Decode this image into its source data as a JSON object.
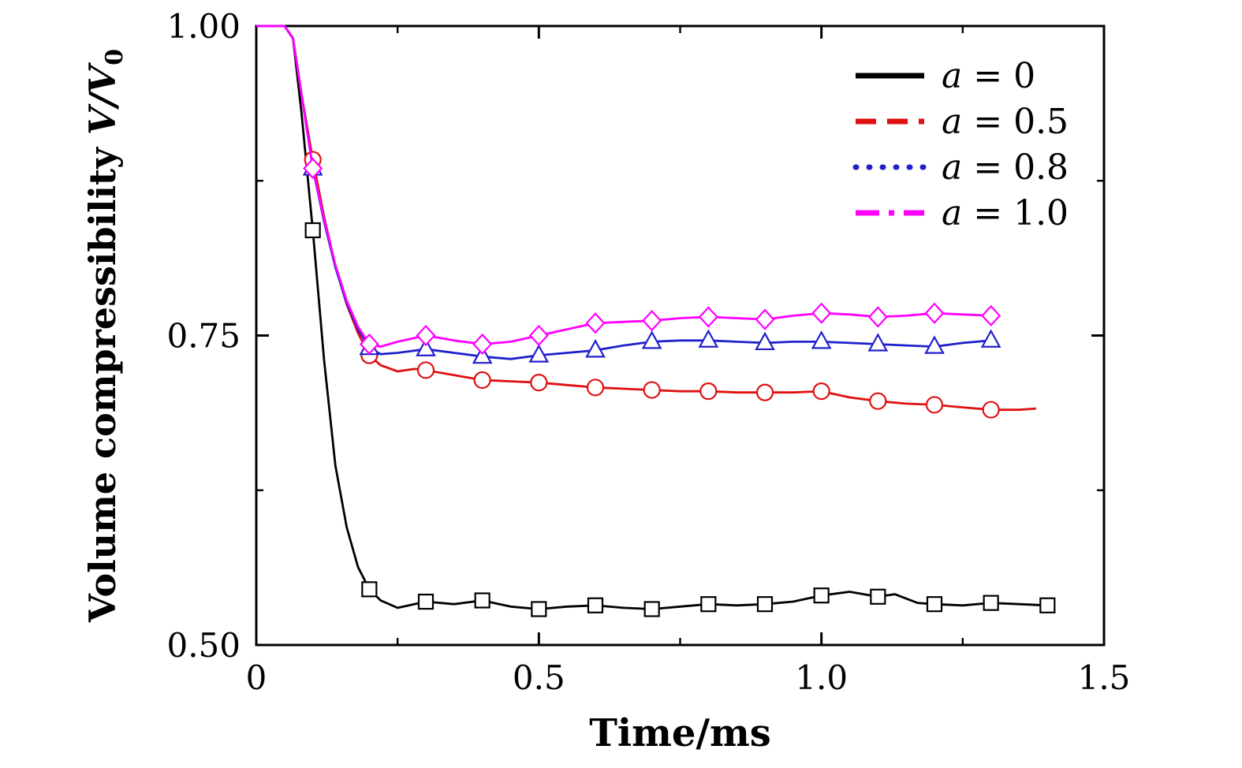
{
  "figure": {
    "background": "#ffffff",
    "frame_color": "#000000"
  },
  "chart_data": {
    "type": "line",
    "title": "",
    "xlabel": "Time/ms",
    "ylabel": {
      "text": "Volume compressibility",
      "math": "V/V",
      "sub": "0"
    },
    "xlim": [
      0,
      1.5
    ],
    "ylim": [
      0.5,
      1.0
    ],
    "grid": false,
    "legend_position": "top-right",
    "xticks": [
      {
        "value": 0,
        "label": "0"
      },
      {
        "value": 0.5,
        "label": "0.5"
      },
      {
        "value": 1.0,
        "label": "1.0"
      },
      {
        "value": 1.5,
        "label": "1.5"
      }
    ],
    "xminorticks": [
      0.25,
      0.75,
      1.25
    ],
    "yticks": [
      {
        "value": 0.5,
        "label": "0.50"
      },
      {
        "value": 0.75,
        "label": "0.75"
      },
      {
        "value": 1.0,
        "label": "1.00"
      }
    ],
    "yminorticks": [
      0.625,
      0.875
    ],
    "series": [
      {
        "name": "a = 0",
        "color": "#000000",
        "legend_dash": "solid",
        "marker": "square",
        "x": [
          0,
          0.05,
          0.065,
          0.08,
          0.1,
          0.12,
          0.14,
          0.16,
          0.18,
          0.2,
          0.22,
          0.25,
          0.3,
          0.35,
          0.4,
          0.45,
          0.5,
          0.55,
          0.6,
          0.65,
          0.7,
          0.75,
          0.8,
          0.85,
          0.9,
          0.95,
          1.0,
          1.05,
          1.1,
          1.13,
          1.17,
          1.2,
          1.25,
          1.3,
          1.35,
          1.4
        ],
        "v": [
          1.0,
          1.0,
          0.99,
          0.93,
          0.835,
          0.73,
          0.645,
          0.595,
          0.563,
          0.545,
          0.536,
          0.53,
          0.535,
          0.533,
          0.536,
          0.531,
          0.529,
          0.531,
          0.532,
          0.53,
          0.529,
          0.531,
          0.533,
          0.532,
          0.533,
          0.535,
          0.54,
          0.543,
          0.539,
          0.541,
          0.534,
          0.533,
          0.532,
          0.534,
          0.533,
          0.532
        ],
        "marker_x": [
          0.1,
          0.2,
          0.3,
          0.4,
          0.5,
          0.6,
          0.7,
          0.8,
          0.9,
          1.0,
          1.1,
          1.2,
          1.3,
          1.4
        ],
        "marker_v": [
          0.835,
          0.545,
          0.535,
          0.536,
          0.529,
          0.532,
          0.529,
          0.533,
          0.533,
          0.54,
          0.539,
          0.533,
          0.534,
          0.532
        ]
      },
      {
        "name": "a = 0.5",
        "color": "#e01010",
        "legend_dash": "dashed",
        "marker": "circle",
        "x": [
          0,
          0.05,
          0.065,
          0.08,
          0.1,
          0.12,
          0.14,
          0.16,
          0.18,
          0.2,
          0.22,
          0.25,
          0.28,
          0.3,
          0.35,
          0.4,
          0.45,
          0.5,
          0.55,
          0.6,
          0.65,
          0.7,
          0.75,
          0.8,
          0.85,
          0.9,
          0.95,
          1.0,
          1.05,
          1.1,
          1.15,
          1.2,
          1.25,
          1.3,
          1.35,
          1.38
        ],
        "v": [
          1.0,
          1.0,
          0.99,
          0.945,
          0.892,
          0.846,
          0.806,
          0.775,
          0.752,
          0.734,
          0.726,
          0.721,
          0.723,
          0.722,
          0.718,
          0.714,
          0.713,
          0.712,
          0.71,
          0.708,
          0.707,
          0.706,
          0.705,
          0.705,
          0.704,
          0.704,
          0.704,
          0.705,
          0.7,
          0.697,
          0.695,
          0.694,
          0.692,
          0.69,
          0.69,
          0.691
        ],
        "marker_x": [
          0.1,
          0.2,
          0.3,
          0.4,
          0.5,
          0.6,
          0.7,
          0.8,
          0.9,
          1.0,
          1.1,
          1.2,
          1.3
        ],
        "marker_v": [
          0.892,
          0.734,
          0.722,
          0.714,
          0.712,
          0.708,
          0.706,
          0.705,
          0.704,
          0.705,
          0.697,
          0.694,
          0.69
        ]
      },
      {
        "name": "a = 0.8",
        "color": "#2020cc",
        "legend_dash": "dotted",
        "marker": "triangle",
        "x": [
          0,
          0.05,
          0.065,
          0.08,
          0.1,
          0.12,
          0.14,
          0.16,
          0.18,
          0.2,
          0.22,
          0.25,
          0.3,
          0.35,
          0.4,
          0.45,
          0.5,
          0.55,
          0.6,
          0.65,
          0.7,
          0.75,
          0.8,
          0.85,
          0.9,
          0.95,
          1.0,
          1.05,
          1.1,
          1.15,
          1.2,
          1.25,
          1.3
        ],
        "v": [
          1.0,
          1.0,
          0.99,
          0.945,
          0.885,
          0.842,
          0.805,
          0.776,
          0.755,
          0.74,
          0.735,
          0.736,
          0.739,
          0.736,
          0.733,
          0.731,
          0.734,
          0.736,
          0.738,
          0.742,
          0.745,
          0.746,
          0.746,
          0.745,
          0.744,
          0.745,
          0.745,
          0.744,
          0.743,
          0.742,
          0.741,
          0.744,
          0.746
        ],
        "marker_x": [
          0.1,
          0.2,
          0.3,
          0.4,
          0.5,
          0.6,
          0.7,
          0.8,
          0.9,
          1.0,
          1.1,
          1.2,
          1.3
        ],
        "marker_v": [
          0.885,
          0.74,
          0.739,
          0.733,
          0.734,
          0.738,
          0.745,
          0.746,
          0.744,
          0.745,
          0.743,
          0.741,
          0.746
        ]
      },
      {
        "name": "a = 1.0",
        "color": "#ff00ff",
        "legend_dash": "dashdot",
        "marker": "diamond",
        "x": [
          0,
          0.05,
          0.065,
          0.08,
          0.1,
          0.12,
          0.14,
          0.16,
          0.18,
          0.2,
          0.22,
          0.25,
          0.3,
          0.35,
          0.4,
          0.45,
          0.5,
          0.55,
          0.6,
          0.65,
          0.7,
          0.75,
          0.8,
          0.85,
          0.9,
          0.95,
          1.0,
          1.05,
          1.1,
          1.15,
          1.2,
          1.25,
          1.3
        ],
        "v": [
          1.0,
          1.0,
          0.99,
          0.945,
          0.885,
          0.844,
          0.807,
          0.778,
          0.757,
          0.743,
          0.741,
          0.745,
          0.75,
          0.746,
          0.743,
          0.745,
          0.75,
          0.755,
          0.76,
          0.761,
          0.762,
          0.764,
          0.765,
          0.764,
          0.763,
          0.766,
          0.768,
          0.767,
          0.765,
          0.766,
          0.768,
          0.767,
          0.766
        ],
        "marker_x": [
          0.1,
          0.2,
          0.3,
          0.4,
          0.5,
          0.6,
          0.7,
          0.8,
          0.9,
          1.0,
          1.1,
          1.2,
          1.3
        ],
        "marker_v": [
          0.885,
          0.743,
          0.75,
          0.743,
          0.75,
          0.76,
          0.762,
          0.765,
          0.763,
          0.768,
          0.765,
          0.768,
          0.766
        ]
      }
    ]
  }
}
